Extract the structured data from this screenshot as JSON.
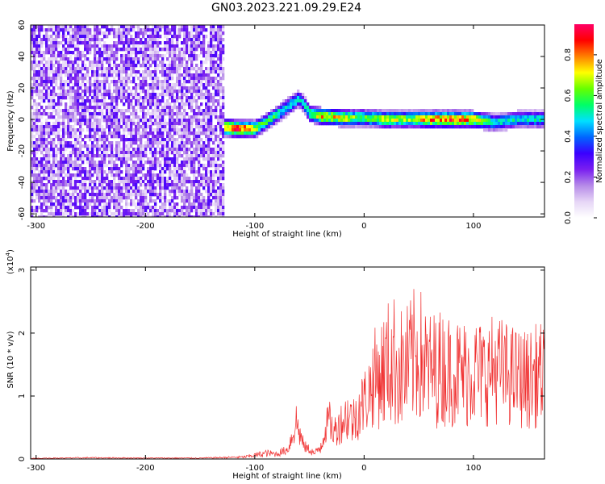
{
  "title": "GN03.2023.221.09.29.E24",
  "chart_data": [
    {
      "type": "heatmap",
      "xlabel": "Height of straight line (km)",
      "ylabel": "Frequency (Hz)",
      "xlim": [
        -305,
        165
      ],
      "ylim": [
        -62,
        60
      ],
      "xticks": [
        "-300",
        "-200",
        "-100",
        "0",
        "100"
      ],
      "xtick_values": [
        -300,
        -200,
        -100,
        0,
        100
      ],
      "yticks": [
        "-60",
        "-40",
        "-20",
        "0",
        "20",
        "40",
        "60"
      ],
      "ytick_values": [
        -60,
        -40,
        -20,
        0,
        20,
        40,
        60
      ],
      "colorbar": {
        "label": "Normalized spectral amplitude",
        "ticks": [
          "0.0",
          "0.2",
          "0.4",
          "0.6",
          "0.8"
        ],
        "tick_values": [
          0.0,
          0.2,
          0.4,
          0.6,
          0.8
        ],
        "range": [
          0,
          0.95
        ],
        "colors": [
          "#ffffff",
          "#e6d6f6",
          "#b68ae8",
          "#7a1ff0",
          "#3a00ff",
          "#0066ff",
          "#00e0ff",
          "#00ff66",
          "#66ff00",
          "#ffff00",
          "#ff8000",
          "#ff0000",
          "#ff0066"
        ]
      },
      "noise_region": {
        "x": [
          -305,
          -128
        ],
        "amplitude": [
          0.05,
          0.3
        ]
      },
      "ridge": {
        "x": [
          -128,
          -115,
          -100,
          -90,
          -80,
          -70,
          -60,
          -55,
          -50,
          -40,
          -20,
          0,
          20,
          40,
          60,
          80,
          100,
          120,
          140,
          165
        ],
        "frequency": [
          -5,
          -6,
          -6,
          -2,
          3,
          8,
          13,
          10,
          4,
          2,
          1,
          1,
          0,
          0,
          0,
          0,
          0,
          -2,
          0,
          0
        ],
        "amplitude": [
          0.75,
          0.9,
          0.7,
          0.55,
          0.55,
          0.5,
          0.5,
          0.45,
          0.6,
          0.75,
          0.7,
          0.6,
          0.7,
          0.65,
          0.8,
          0.85,
          0.75,
          0.5,
          0.5,
          0.5
        ]
      }
    },
    {
      "type": "line",
      "xlabel": "Height of straight line (km)",
      "ylabel": "SNR (10 * v/v)",
      "multiplier_label": "(x10",
      "multiplier_exp": "4",
      "multiplier_close": ")",
      "xlim": [
        -305,
        165
      ],
      "ylim": [
        0,
        30500
      ],
      "xticks": [
        "-300",
        "-200",
        "-100",
        "0",
        "100"
      ],
      "xtick_values": [
        -300,
        -200,
        -100,
        0,
        100
      ],
      "yticks": [
        "0",
        "1",
        "2",
        "3"
      ],
      "ytick_values": [
        0,
        10000,
        20000,
        30000
      ],
      "color": "#f03030",
      "series": [
        {
          "x": [
            -305,
            -250,
            -200,
            -150,
            -110,
            -100,
            -90,
            -80,
            -70,
            -66,
            -62,
            -58,
            -55,
            -50,
            -45,
            -40,
            -36,
            -32,
            -28,
            -25,
            -20,
            -15,
            -10,
            -5,
            0,
            5,
            10,
            15,
            20,
            25,
            30,
            35,
            40,
            45,
            50,
            55,
            60,
            70,
            80,
            90,
            100,
            110,
            120,
            130,
            140,
            150,
            160,
            165
          ],
          "y": [
            100,
            200,
            150,
            150,
            300,
            600,
            900,
            800,
            1500,
            3500,
            6000,
            3500,
            2000,
            1500,
            800,
            2000,
            4500,
            6500,
            4000,
            5000,
            6000,
            7000,
            6000,
            8000,
            9000,
            11000,
            13000,
            13500,
            14500,
            16000,
            15000,
            14000,
            14500,
            16000,
            17000,
            15000,
            14000,
            14500,
            14000,
            13500,
            14000,
            13500,
            14500,
            13500,
            13000,
            12500,
            13500,
            13000
          ],
          "spread": [
            50,
            100,
            80,
            80,
            200,
            400,
            600,
            500,
            800,
            2000,
            3500,
            2000,
            1000,
            800,
            500,
            1500,
            2500,
            3000,
            2500,
            3000,
            3500,
            4500,
            4000,
            5000,
            5500,
            6500,
            8000,
            9000,
            10000,
            11000,
            10500,
            10000,
            10500,
            11000,
            11500,
            10000,
            9500,
            9500,
            9000,
            9000,
            9000,
            8500,
            9000,
            8500,
            8000,
            8000,
            8500,
            8000
          ]
        }
      ]
    }
  ]
}
